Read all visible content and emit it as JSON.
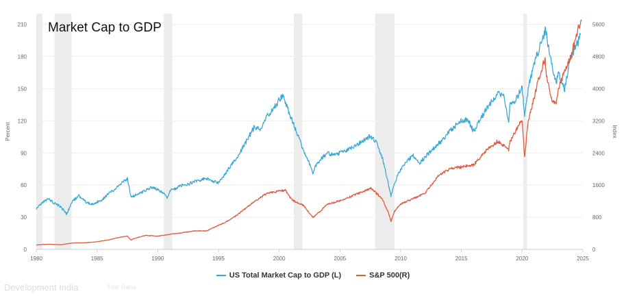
{
  "page": {
    "footer_text": "Development India",
    "footer_text_2": "Tilak Rana"
  },
  "chart_data": {
    "type": "line",
    "title": "Market Cap to GDP",
    "ylabel_left": "Percent",
    "ylabel_right": "Index",
    "xlim": [
      1980,
      2025
    ],
    "ylim_left": [
      0,
      220
    ],
    "ylim_right": [
      0,
      5867
    ],
    "x_ticks": [
      "1980",
      "1985",
      "1990",
      "1995",
      "2000",
      "2005",
      "2010",
      "2015",
      "2020",
      "2025"
    ],
    "y_ticks_left": [
      "0",
      "30",
      "60",
      "90",
      "120",
      "150",
      "180",
      "210"
    ],
    "y_ticks_right": [
      "0",
      "800",
      "1600",
      "2400",
      "3200",
      "4000",
      "4800",
      "5600"
    ],
    "legend_position": "bottom-center",
    "recessions": [
      [
        1980.0,
        1980.5
      ],
      [
        1981.5,
        1982.9
      ],
      [
        1990.5,
        1991.2
      ],
      [
        2001.2,
        2001.9
      ],
      [
        2007.9,
        2009.5
      ],
      [
        2020.1,
        2020.4
      ]
    ],
    "series": [
      {
        "name": "US Total Market Cap to GDP (L)",
        "axis": "left",
        "color": "#3aa8d4",
        "x": [
          1980.0,
          1980.5,
          1981.0,
          1981.5,
          1982.0,
          1982.5,
          1983.0,
          1983.5,
          1984.0,
          1984.5,
          1985.0,
          1985.5,
          1986.0,
          1986.5,
          1987.0,
          1987.5,
          1987.8,
          1988.0,
          1988.5,
          1989.0,
          1989.5,
          1990.0,
          1990.5,
          1990.8,
          1991.0,
          1991.5,
          1992.0,
          1992.5,
          1993.0,
          1993.5,
          1994.0,
          1994.5,
          1995.0,
          1995.5,
          1996.0,
          1996.5,
          1997.0,
          1997.5,
          1998.0,
          1998.5,
          1999.0,
          1999.5,
          2000.0,
          2000.3,
          2000.7,
          2001.0,
          2001.5,
          2002.0,
          2002.5,
          2002.8,
          2003.0,
          2003.5,
          2004.0,
          2004.5,
          2005.0,
          2005.5,
          2006.0,
          2006.5,
          2007.0,
          2007.5,
          2008.0,
          2008.5,
          2008.9,
          2009.2,
          2009.5,
          2010.0,
          2010.5,
          2011.0,
          2011.5,
          2012.0,
          2012.5,
          2013.0,
          2013.5,
          2014.0,
          2014.5,
          2015.0,
          2015.5,
          2016.0,
          2016.5,
          2017.0,
          2017.5,
          2018.0,
          2018.5,
          2018.9,
          2019.0,
          2019.5,
          2020.0,
          2020.2,
          2020.5,
          2021.0,
          2021.5,
          2021.9,
          2022.0,
          2022.5,
          2022.8,
          2023.0,
          2023.5,
          2024.0,
          2024.5,
          2024.8
        ],
        "values": [
          38,
          44,
          47,
          43,
          40,
          33,
          45,
          50,
          45,
          42,
          44,
          47,
          53,
          56,
          62,
          66,
          48,
          50,
          52,
          55,
          58,
          56,
          52,
          48,
          55,
          57,
          60,
          61,
          63,
          65,
          66,
          64,
          62,
          70,
          78,
          85,
          95,
          105,
          115,
          112,
          125,
          130,
          140,
          145,
          132,
          122,
          108,
          92,
          80,
          70,
          78,
          85,
          90,
          88,
          90,
          92,
          95,
          98,
          102,
          106,
          100,
          85,
          65,
          50,
          62,
          75,
          82,
          88,
          80,
          86,
          92,
          98,
          102,
          110,
          115,
          120,
          122,
          110,
          120,
          130,
          138,
          145,
          142,
          120,
          135,
          140,
          152,
          125,
          150,
          175,
          190,
          205,
          200,
          168,
          155,
          165,
          150,
          180,
          190,
          200
        ]
      },
      {
        "name": "S&P 500(R)",
        "axis": "right",
        "color": "#e05a40",
        "x": [
          1980.0,
          1981.0,
          1982.0,
          1983.0,
          1984.0,
          1985.0,
          1986.0,
          1987.0,
          1987.5,
          1987.8,
          1988.0,
          1989.0,
          1990.0,
          1991.0,
          1992.0,
          1993.0,
          1994.0,
          1995.0,
          1996.0,
          1997.0,
          1998.0,
          1999.0,
          2000.0,
          2000.5,
          2001.0,
          2001.5,
          2002.0,
          2002.5,
          2002.8,
          2003.0,
          2004.0,
          2005.0,
          2006.0,
          2007.0,
          2007.5,
          2008.0,
          2008.5,
          2009.0,
          2009.2,
          2009.5,
          2010.0,
          2011.0,
          2012.0,
          2013.0,
          2014.0,
          2015.0,
          2016.0,
          2017.0,
          2018.0,
          2018.9,
          2019.0,
          2019.5,
          2020.0,
          2020.2,
          2020.5,
          2021.0,
          2021.5,
          2021.9,
          2022.0,
          2022.5,
          2022.8,
          2023.0,
          2023.5,
          2024.0,
          2024.5,
          2024.9
        ],
        "values": [
          110,
          130,
          115,
          160,
          165,
          190,
          240,
          310,
          330,
          230,
          265,
          350,
          330,
          375,
          415,
          460,
          460,
          600,
          740,
          970,
          1200,
          1400,
          1450,
          1470,
          1250,
          1150,
          1100,
          900,
          800,
          850,
          1130,
          1210,
          1330,
          1450,
          1530,
          1400,
          1250,
          900,
          700,
          950,
          1130,
          1260,
          1400,
          1800,
          2000,
          2050,
          2100,
          2450,
          2700,
          2480,
          2700,
          2950,
          3250,
          2300,
          3200,
          3800,
          4400,
          4760,
          4300,
          3700,
          3600,
          4000,
          4450,
          4770,
          5400,
          5700
        ]
      }
    ]
  }
}
